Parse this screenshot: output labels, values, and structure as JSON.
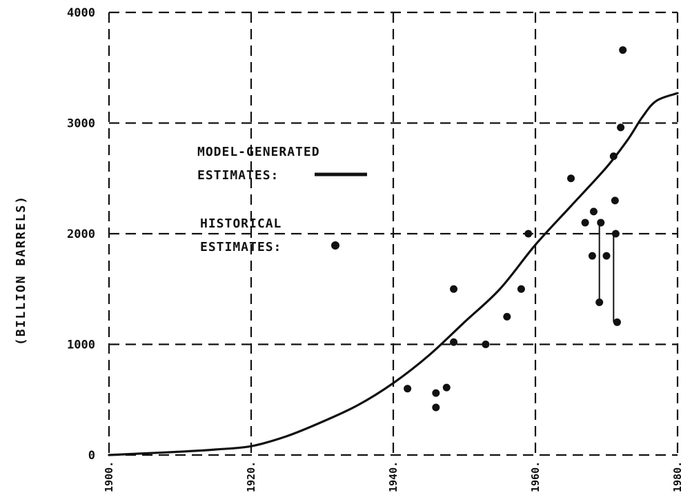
{
  "chart_data": {
    "type": "line",
    "title": "",
    "xlabel": "",
    "ylabel": "(BILLION BARRELS)",
    "xlim": [
      1900,
      1980
    ],
    "ylim": [
      0,
      4000
    ],
    "x_ticks": [
      1900,
      1920,
      1940,
      1960,
      1980
    ],
    "x_tick_labels": [
      "1900.",
      "1920.",
      "1940.",
      "1960.",
      "1980."
    ],
    "y_ticks": [
      0,
      1000,
      2000,
      3000,
      4000
    ],
    "y_tick_labels": [
      "0",
      "1000",
      "2000",
      "3000",
      "4000"
    ],
    "grid": true,
    "legend": {
      "model_label_line1": "MODEL-GENERATED",
      "model_label_line2": "ESTIMATES:",
      "historical_label_line1": "HISTORICAL",
      "historical_label_line2": "ESTIMATES:"
    },
    "series": [
      {
        "kind": "model",
        "x": [
          1900,
          1905,
          1910,
          1915,
          1920,
          1925,
          1930,
          1935,
          1940,
          1945,
          1950,
          1955,
          1960,
          1965,
          1970,
          1973,
          1975,
          1977,
          1980
        ],
        "y": [
          0,
          15,
          30,
          50,
          80,
          170,
          300,
          450,
          650,
          900,
          1200,
          1500,
          1900,
          2250,
          2600,
          2850,
          3050,
          3200,
          3270
        ]
      },
      {
        "kind": "historical",
        "x": [
          1942,
          1946,
          1946,
          1947.5,
          1948.5,
          1948.5,
          1953,
          1956,
          1958,
          1959,
          1965,
          1967,
          1968,
          1968.2,
          1969,
          1969.2,
          1970,
          1971,
          1971.2,
          1971.3,
          1971.5,
          1972,
          1972.3
        ],
        "y": [
          600,
          430,
          560,
          610,
          1500,
          1020,
          1000,
          1250,
          1500,
          2000,
          2500,
          2100,
          1800,
          2200,
          1380,
          2100,
          1800,
          2700,
          2300,
          2000,
          1200,
          2960,
          3660
        ]
      }
    ],
    "historical_ranges": [
      {
        "x": 1969,
        "y_low": 1380,
        "y_high": 2100
      },
      {
        "x": 1971,
        "y_low": 1200,
        "y_high": 2000
      }
    ]
  }
}
